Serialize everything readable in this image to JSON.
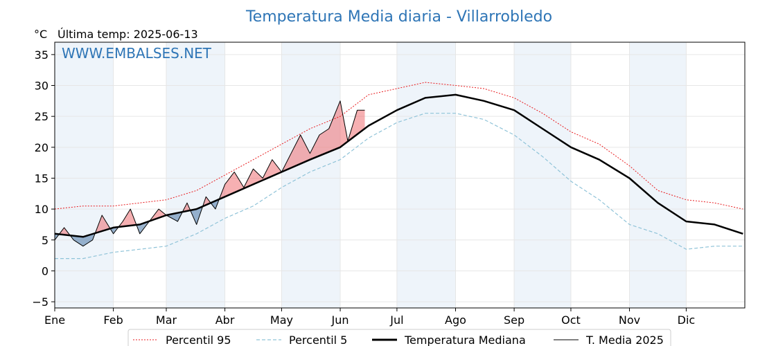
{
  "chart_data": {
    "type": "line",
    "title": "Temperatura Media diaria - Villarrobledo",
    "unit_label": "°C",
    "last_update": "Última temp: 2025-06-13",
    "watermark": "WWW.EMBALSES.NET",
    "ylim": [
      -6,
      37
    ],
    "yticks": [
      "−5",
      "0",
      "5",
      "10",
      "15",
      "20",
      "25",
      "30",
      "35"
    ],
    "ytick_values": [
      -5,
      0,
      5,
      10,
      15,
      20,
      25,
      30,
      35
    ],
    "months": [
      "Ene",
      "Feb",
      "Mar",
      "Abr",
      "May",
      "Jun",
      "Jul",
      "Ago",
      "Sep",
      "Oct",
      "Nov",
      "Dic"
    ],
    "month_start_days": [
      0,
      31,
      59,
      90,
      120,
      151,
      181,
      212,
      243,
      273,
      304,
      334
    ],
    "xlim": [
      0,
      365
    ],
    "grid": true,
    "legend_position": "bottom-center",
    "colors": {
      "p95": "#e8191c",
      "p5": "#8fc3d8",
      "median": "#000000",
      "year": "#000000",
      "above": "#ee6f73",
      "below": "#4a78a7",
      "month_shade": "#eef4fa",
      "title": "#2e75b6"
    },
    "series": [
      {
        "key": "p95",
        "name": "Percentil 95",
        "style": "dotted-red",
        "x": [
          0,
          15,
          31,
          45,
          59,
          75,
          90,
          105,
          120,
          135,
          151,
          166,
          181,
          196,
          212,
          227,
          243,
          258,
          273,
          288,
          304,
          319,
          334,
          349,
          364
        ],
        "y": [
          10,
          10.5,
          10.5,
          11,
          11.5,
          13,
          15.5,
          18,
          20.5,
          23,
          25,
          28.5,
          29.5,
          30.5,
          30,
          29.5,
          28,
          25.5,
          22.5,
          20.5,
          17,
          13,
          11.5,
          11,
          10
        ]
      },
      {
        "key": "p5",
        "name": "Percentil 5",
        "style": "dashed-lightblue",
        "x": [
          0,
          15,
          31,
          45,
          59,
          75,
          90,
          105,
          120,
          135,
          151,
          166,
          181,
          196,
          212,
          227,
          243,
          258,
          273,
          288,
          304,
          319,
          334,
          349,
          364
        ],
        "y": [
          2,
          2,
          3,
          3.5,
          4,
          6,
          8.5,
          10.5,
          13.5,
          16,
          18,
          21.5,
          24,
          25.5,
          25.5,
          24.5,
          22,
          18.5,
          14.5,
          11.5,
          7.5,
          6,
          3.5,
          4,
          4
        ]
      },
      {
        "key": "median",
        "name": "Temperatura Mediana",
        "style": "thick-black",
        "x": [
          0,
          15,
          31,
          45,
          59,
          75,
          90,
          105,
          120,
          135,
          151,
          166,
          181,
          196,
          212,
          227,
          243,
          258,
          273,
          288,
          304,
          319,
          334,
          349,
          364
        ],
        "y": [
          6,
          5.5,
          7,
          7.5,
          9,
          10,
          12,
          14,
          16,
          18,
          20,
          23.5,
          26,
          28,
          28.5,
          27.5,
          26,
          23,
          20,
          18,
          15,
          11,
          8,
          7.5,
          6
        ]
      },
      {
        "key": "year",
        "name": "T. Media 2025",
        "style": "thin-black",
        "x": [
          0,
          5,
          10,
          15,
          20,
          25,
          31,
          36,
          40,
          45,
          50,
          55,
          59,
          65,
          70,
          75,
          80,
          85,
          90,
          95,
          100,
          105,
          110,
          115,
          120,
          125,
          130,
          135,
          140,
          145,
          151,
          155,
          160,
          164
        ],
        "y": [
          5,
          7,
          5,
          4,
          5,
          9,
          6,
          8,
          10,
          6,
          8,
          10,
          9,
          8,
          11,
          7.5,
          12,
          10,
          14,
          16,
          13.5,
          16.5,
          15,
          18,
          16,
          19,
          22,
          19,
          22,
          23,
          27.5,
          21,
          26,
          26
        ]
      }
    ]
  }
}
